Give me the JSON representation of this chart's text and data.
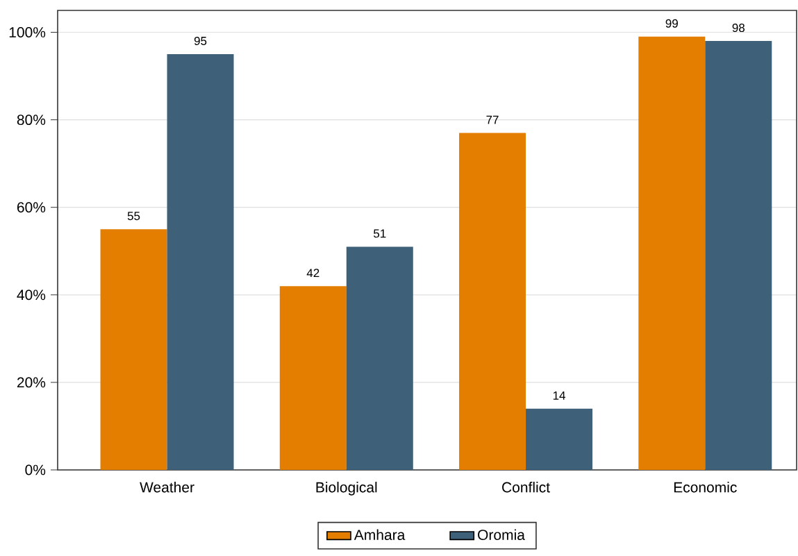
{
  "chart_data": {
    "type": "bar",
    "categories": [
      "Weather",
      "Biological",
      "Conflict",
      "Economic"
    ],
    "series": [
      {
        "name": "Amhara",
        "color": "#e37e00",
        "values": [
          55,
          42,
          77,
          99
        ]
      },
      {
        "name": "Oromia",
        "color": "#3e6179",
        "values": [
          95,
          51,
          14,
          98
        ]
      }
    ],
    "ylim": [
      0,
      105
    ],
    "yticks": [
      {
        "value": 0,
        "label": "0%"
      },
      {
        "value": 20,
        "label": "20%"
      },
      {
        "value": 40,
        "label": "40%"
      },
      {
        "value": 60,
        "label": "60%"
      },
      {
        "value": 80,
        "label": "80%"
      },
      {
        "value": 100,
        "label": "100%"
      }
    ],
    "grid": "y",
    "legend": "bottom",
    "data_labels": true
  }
}
